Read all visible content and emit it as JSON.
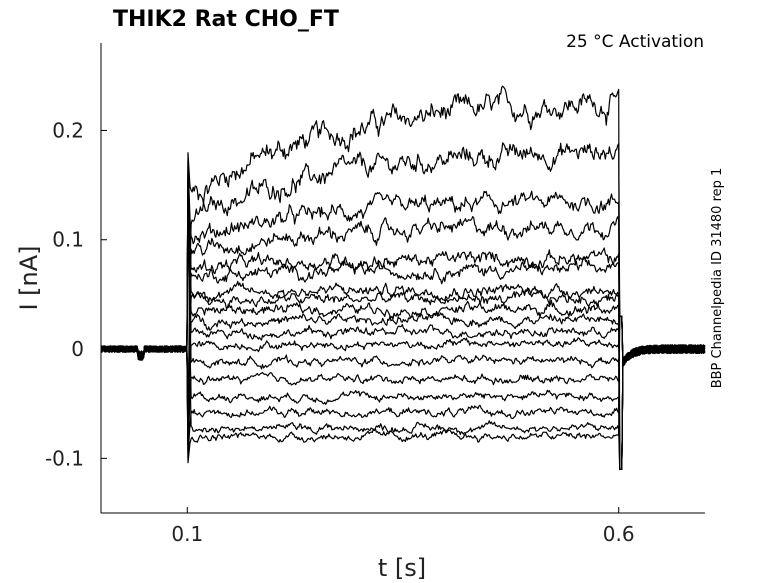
{
  "chart_data": {
    "type": "line",
    "title": "THIK2  Rat  CHO_FT",
    "annotation": "25 °C  Activation",
    "side_label": "BBP Channelpedia ID 31480 rep 1",
    "xlabel": "t [s]",
    "ylabel": "I [nA]",
    "xlim": [
      0.0,
      0.7
    ],
    "ylim": [
      -0.15,
      0.28
    ],
    "xticks": [
      0.1,
      0.6
    ],
    "xtick_labels": [
      "0.1",
      "0.6"
    ],
    "yticks": [
      -0.1,
      0,
      0.1,
      0.2
    ],
    "ytick_labels": [
      "-0.1",
      "0",
      "0.1",
      "0.2"
    ],
    "grid": false,
    "pulse_start": 0.1,
    "pulse_end": 0.6,
    "series": [
      {
        "start": 0.138,
        "end": 0.226
      },
      {
        "start": 0.118,
        "end": 0.181
      },
      {
        "start": 0.102,
        "end": 0.135
      },
      {
        "start": 0.089,
        "end": 0.113
      },
      {
        "start": 0.075,
        "end": 0.083
      },
      {
        "start": 0.067,
        "end": 0.073
      },
      {
        "start": 0.052,
        "end": 0.054
      },
      {
        "start": 0.044,
        "end": 0.046
      },
      {
        "start": 0.035,
        "end": 0.037
      },
      {
        "start": 0.025,
        "end": 0.027
      },
      {
        "start": 0.014,
        "end": 0.016
      },
      {
        "start": 0.003,
        "end": 0.005
      },
      {
        "start": -0.012,
        "end": -0.011
      },
      {
        "start": -0.028,
        "end": -0.027
      },
      {
        "start": -0.044,
        "end": -0.043
      },
      {
        "start": -0.058,
        "end": -0.058
      },
      {
        "start": -0.072,
        "end": -0.072
      },
      {
        "start": -0.08,
        "end": -0.08
      }
    ]
  }
}
